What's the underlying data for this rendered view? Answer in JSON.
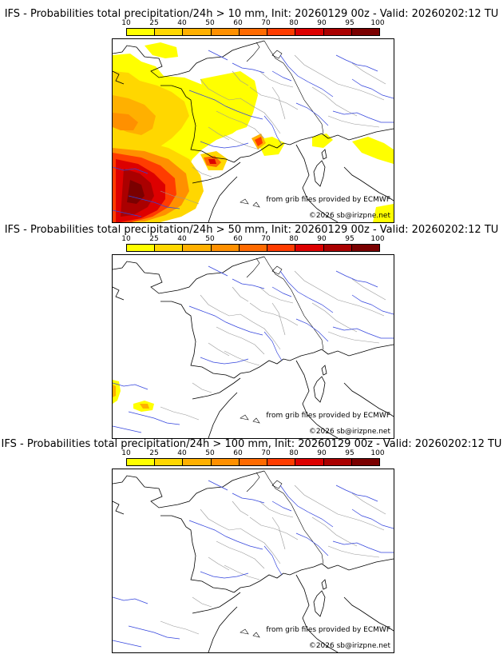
{
  "panels": [
    {
      "title": "IFS - Probabilities total precipitation/24h > 10 mm, Init: 20260129 00z - Valid: 20260202:12 TU"
    },
    {
      "title": "IFS - Probabilities total precipitation/24h > 50 mm, Init: 20260129 00z - Valid: 20260202:12 TU"
    },
    {
      "title": "IFS - Probabilities total precipitation/24h > 100 mm, Init: 20260129 00z - Valid: 20260202:12 TU"
    }
  ],
  "legend": {
    "ticks": [
      "10",
      "25",
      "40",
      "50",
      "60",
      "70",
      "80",
      "90",
      "95",
      "100"
    ],
    "colors": [
      "#ffff00",
      "#ffd700",
      "#ffb000",
      "#ff9000",
      "#ff6a00",
      "#ff3c00",
      "#dd0000",
      "#aa0000",
      "#7a0000"
    ]
  },
  "credits": {
    "source": "from grib files provided by ECMWF",
    "copyright": "©2026 sb@irizpne.net"
  }
}
